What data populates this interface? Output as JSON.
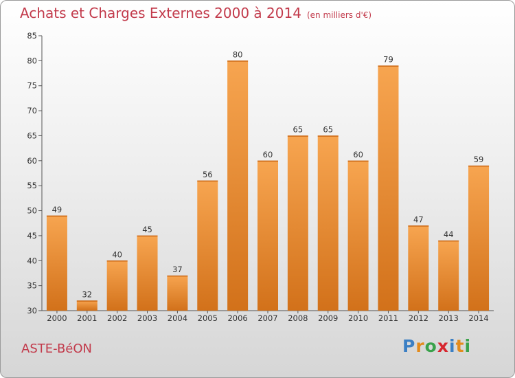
{
  "header": {
    "title": "Achats et Charges Externes 2000 à 2014",
    "subtitle": "(en milliers d'€)"
  },
  "footer": {
    "commune": "ASTE-BéON",
    "logo": [
      "P",
      "r",
      "o",
      "x",
      "i",
      "t",
      "i"
    ]
  },
  "colors": {
    "bar_light": "#f7a550",
    "bar_dark": "#d2711a",
    "title": "#c23a4b",
    "logo": [
      "#3b7fc4",
      "#e38b1c",
      "#3aa24b",
      "#d7262e",
      "#3b7fc4",
      "#e38b1c",
      "#3aa24b"
    ]
  },
  "chart_data": {
    "type": "bar",
    "title": "Achats et Charges Externes 2000 à 2014",
    "subtitle": "(en milliers d'€)",
    "categories": [
      "2000",
      "2001",
      "2002",
      "2003",
      "2004",
      "2005",
      "2006",
      "2007",
      "2008",
      "2009",
      "2010",
      "2011",
      "2012",
      "2013",
      "2014"
    ],
    "values": [
      49,
      32,
      40,
      45,
      37,
      56,
      80,
      60,
      65,
      65,
      60,
      79,
      47,
      44,
      59
    ],
    "ylim": [
      30,
      85
    ],
    "yticks": [
      30,
      35,
      40,
      45,
      50,
      55,
      60,
      65,
      70,
      75,
      80,
      85
    ],
    "grid": false,
    "data_labels": true
  }
}
